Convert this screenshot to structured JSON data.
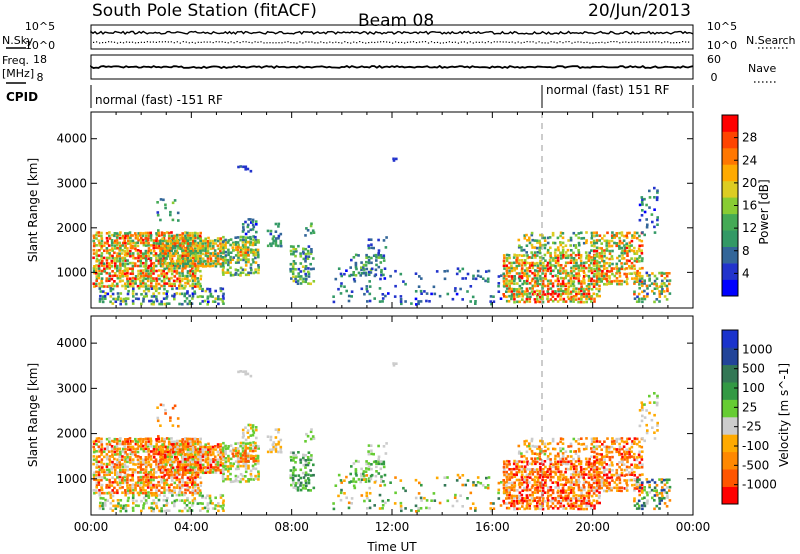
{
  "header": {
    "station": "South Pole Station (fitACF)",
    "beam": "Beam 08",
    "date": "20/Jun/2013"
  },
  "strip_labels": {
    "nsky": "N.Sky",
    "nsky_hi": "10^5",
    "nsky_lo": "10^0",
    "nsearch": "N.Search",
    "nsearch_hi": "10^5",
    "nsearch_lo": "10^0",
    "freq": "Freq.",
    "freq_unit": "[MHz]",
    "freq_hi": "18",
    "freq_lo": "8",
    "nave": "Nave",
    "nave_hi": "60",
    "nave_lo": "0",
    "cpid": "CPID",
    "mode_left": "normal (fast) -151 RF",
    "mode_right": "normal (fast) 151 RF"
  },
  "colors": {
    "power": [
      "#0000ff",
      "#2233cc",
      "#336699",
      "#339966",
      "#44aa55",
      "#88cc33",
      "#ddcc22",
      "#ffaa00",
      "#ff7700",
      "#ff4400",
      "#ff0000"
    ],
    "velocity": [
      "#ff0000",
      "#ff5500",
      "#ff8800",
      "#ffaa00",
      "#cccccc",
      "#66cc33",
      "#339944",
      "#337755",
      "#224499",
      "#1a33cc"
    ]
  },
  "chart_data": [
    {
      "type": "heatmap",
      "name": "power",
      "xlabel": "",
      "ylabel": "Slant Range [km]",
      "yticks": [
        "1000",
        "2000",
        "3000",
        "4000"
      ],
      "colorbar_label": "Power [dB]",
      "colorbar_ticks": [
        "4",
        "8",
        "12",
        "16",
        "20",
        "24",
        "28"
      ],
      "ylim": [
        200,
        4600
      ],
      "xlim": [
        0,
        24
      ]
    },
    {
      "type": "heatmap",
      "name": "velocity",
      "xlabel": "Time UT",
      "ylabel": "Slant Range [km]",
      "xticks": [
        "00:00",
        "04:00",
        "08:00",
        "12:00",
        "16:00",
        "20:00",
        "00:00"
      ],
      "yticks": [
        "1000",
        "2000",
        "3000",
        "4000"
      ],
      "colorbar_label": "Velocity [m s^-1]",
      "colorbar_ticks": [
        "-1000",
        "-500",
        "-100",
        "-25",
        "25",
        "100",
        "500",
        "1000"
      ],
      "ylim": [
        200,
        4600
      ],
      "xlim": [
        0,
        24
      ]
    }
  ]
}
